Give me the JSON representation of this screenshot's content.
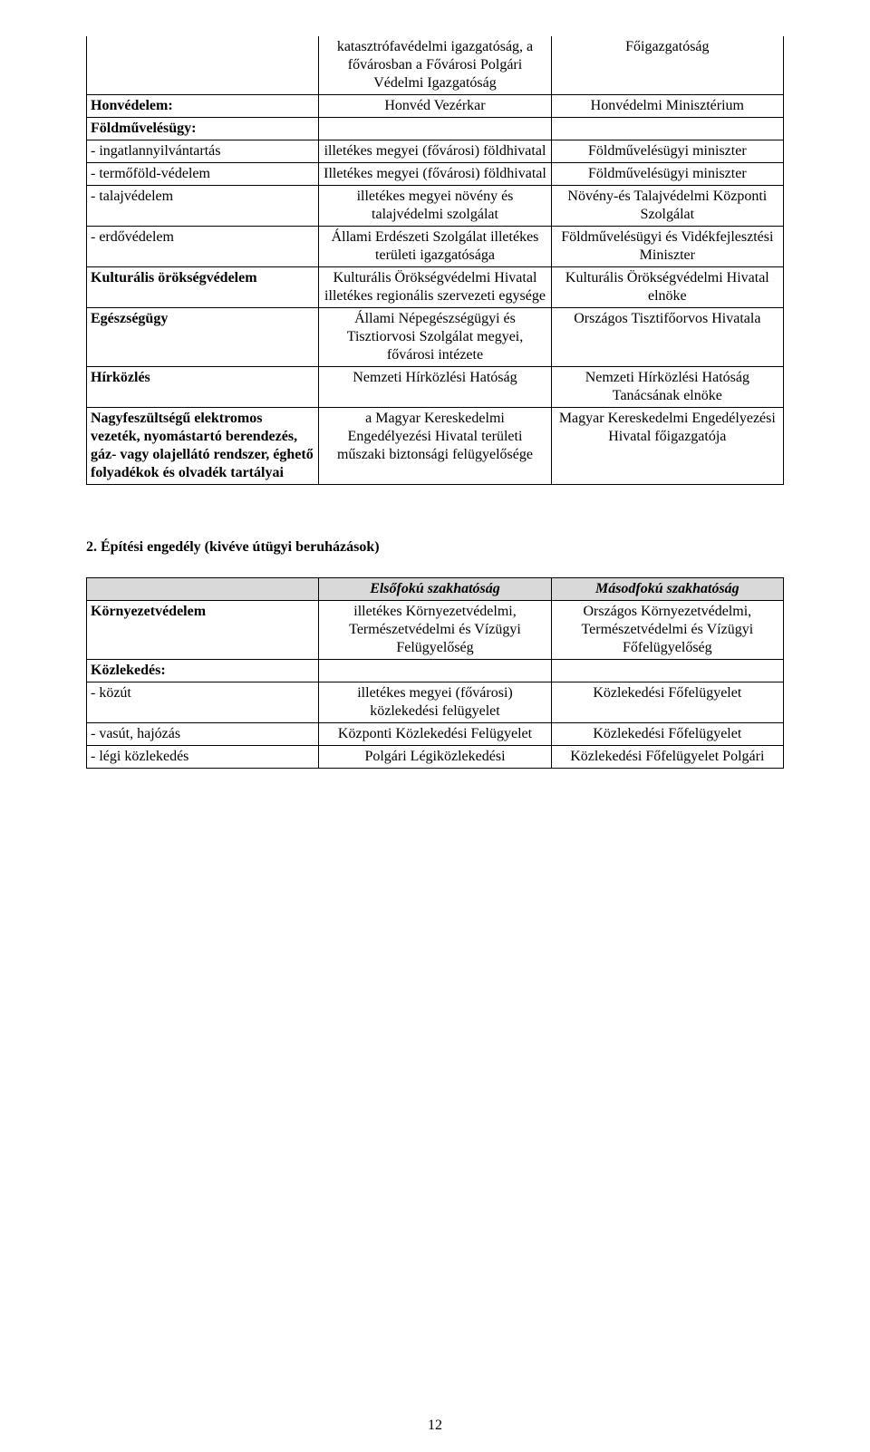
{
  "table1": {
    "rows": [
      {
        "c1": "",
        "c2": "katasztrófavédelmi igazgatóság, a fővárosban a Fővárosi Polgári Védelmi Igazgatóság",
        "c3": "Főigazgatóság",
        "c1bold": false,
        "noTop": true
      },
      {
        "c1": "Honvédelem:",
        "c2": "Honvéd Vezérkar",
        "c3": "Honvédelmi Minisztérium",
        "c1bold": true
      },
      {
        "c1": "Földművelésügy:",
        "c2": "",
        "c3": "",
        "c1bold": true
      },
      {
        "c1": "- ingatlan­nyilvántartás",
        "c2": "illetékes megyei (fővárosi) földhivatal",
        "c3": "Földművelésügyi miniszter",
        "c1bold": false
      },
      {
        "c1": "- termőföld-védelem",
        "c2": "Illetékes megyei (fővárosi) földhivatal",
        "c3": "Földművelésügyi miniszter",
        "c1bold": false
      },
      {
        "c1": "- talajvédelem",
        "c2": "illetékes megyei növény és talajvédelmi szolgálat",
        "c3": "Növény-és Talajvédelmi Központi Szolgálat",
        "c1bold": false
      },
      {
        "c1": "- erdővédelem",
        "c2": "Állami Erdészeti Szolgálat illetékes területi igazgatósága",
        "c3": "Földművelésügyi és Vidékfejlesztési Miniszter",
        "c1bold": false
      },
      {
        "c1": "Kulturális örökségvédelem",
        "c2": "Kulturális Örökségvédelmi Hivatal illetékes regionális szervezeti egysége",
        "c3": "Kulturális Örökségvédelmi Hivatal elnöke",
        "c1bold": true
      },
      {
        "c1": "Egészségügy",
        "c2": "Állami Népegészségügyi és Tisztiorvosi Szolgálat megyei, fővárosi intézete",
        "c3": "Országos Tisztifőorvos Hivatala",
        "c1bold": true
      },
      {
        "c1": "Hírközlés",
        "c2": "Nemzeti Hírközlési Hatóság",
        "c3": "Nemzeti Hírközlési Hatóság Tanácsának elnöke",
        "c1bold": true
      },
      {
        "c1": "Nagyfeszültségű elektromos vezeték, nyomástartó berendezés, gáz- vagy olajellátó rendszer, éghető folyadékok és olvadék tartályai",
        "c2": "a Magyar Kereskedelmi Engedélyezési Hivatal területi műszaki biztonsági felügyelősége",
        "c3": "Magyar Kereskedelmi Engedélyezési Hivatal főigazgatója",
        "c1bold": true
      }
    ]
  },
  "section2": {
    "heading": "2. Építési engedély (kivéve útügyi beruházások)"
  },
  "table2": {
    "head": {
      "c2": "Elsőfokú szakhatóság",
      "c3": "Másodfokú szakhatóság"
    },
    "rows": [
      {
        "c1": "Környezetvédelem",
        "c2": "illetékes Környezetvédelmi, Természetvédelmi és Vízügyi Felügyelőség",
        "c3": "Országos Környezetvédelmi, Természetvédelmi és Vízügyi Főfelügyelőség",
        "c1bold": true
      },
      {
        "c1": "Közlekedés:",
        "c2": "",
        "c3": "",
        "c1bold": true
      },
      {
        "c1": "- közút",
        "c2": "illetékes megyei (fővárosi) közlekedési felügyelet",
        "c3": "Közlekedési Főfelügyelet",
        "c1bold": false
      },
      {
        "c1": "- vasút, hajózás",
        "c2": "Központi Közlekedési Felügyelet",
        "c3": "Közlekedési Főfelügyelet",
        "c1bold": false
      },
      {
        "c1": "- légi közlekedés",
        "c2": "Polgári Légiközlekedési",
        "c3": "Közlekedési Főfelügyelet Polgári",
        "c1bold": false
      }
    ]
  },
  "pageNumber": "12"
}
